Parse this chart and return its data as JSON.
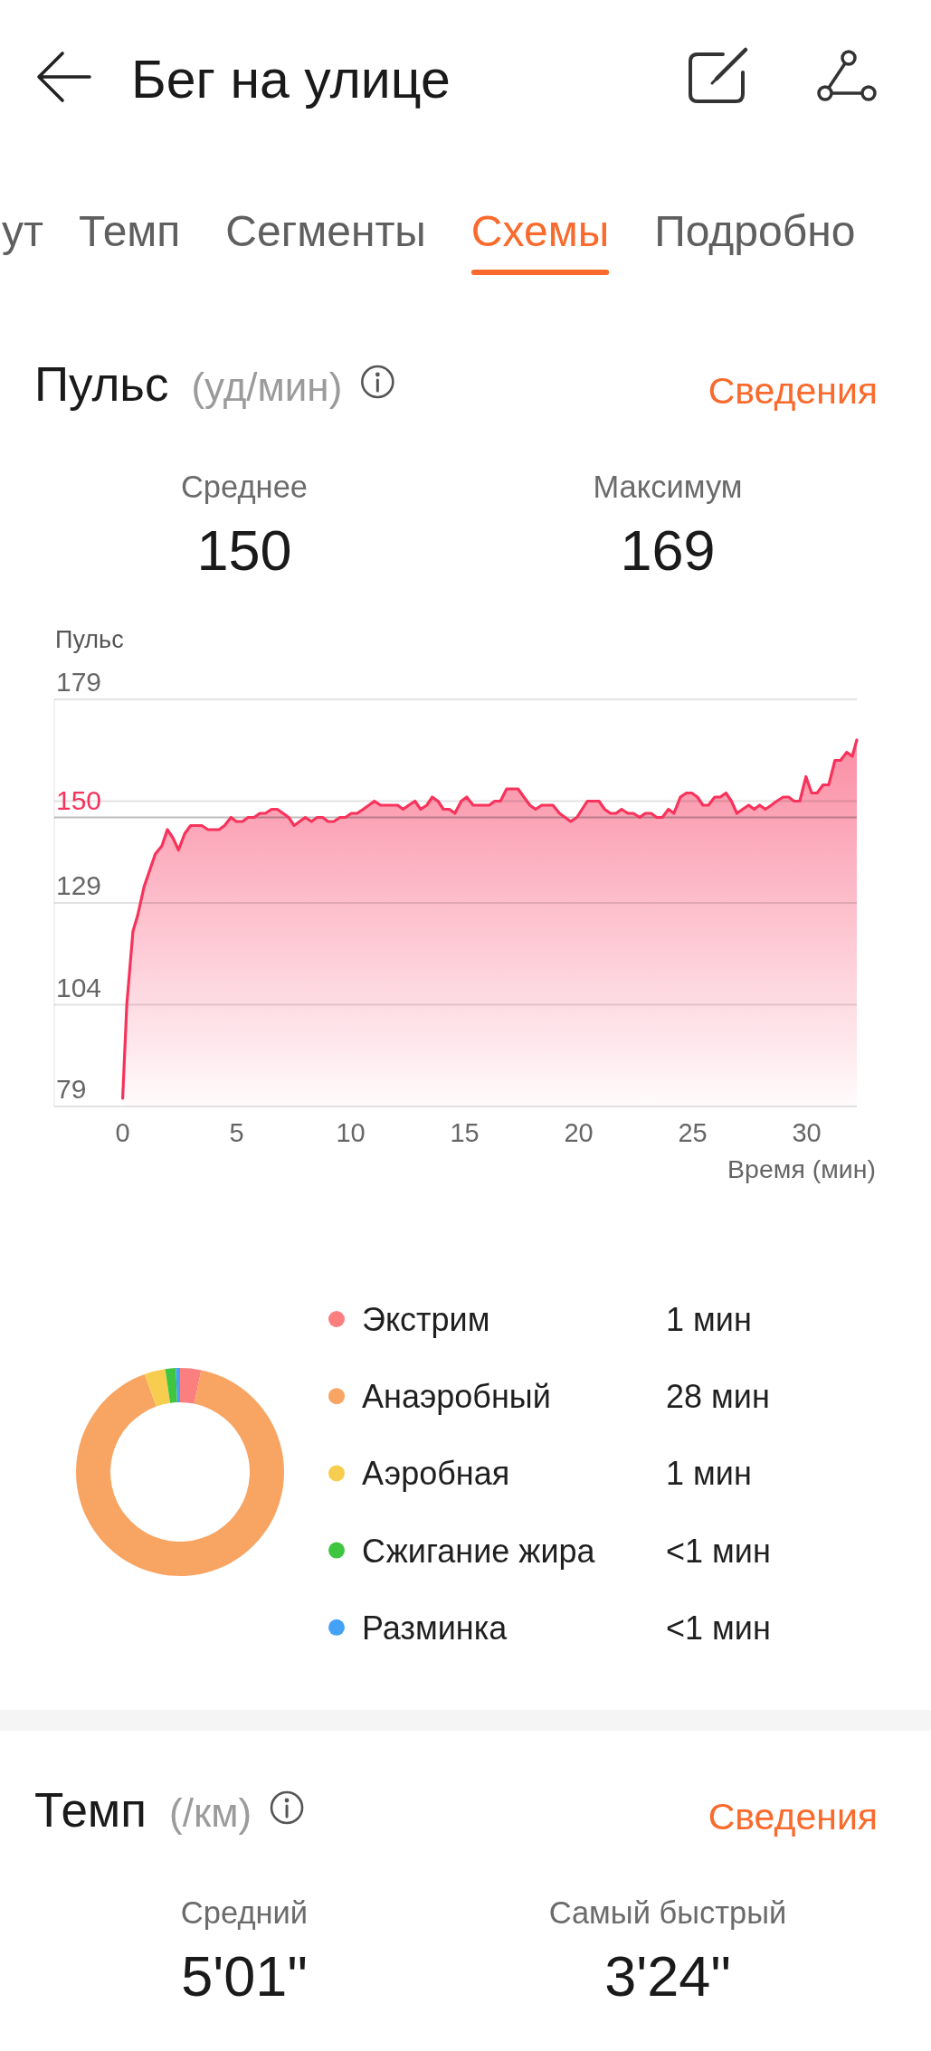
{
  "chart_data": [
    {
      "type": "other",
      "title": "Бег на улице",
      "annotations": [
        "ут",
        "Темп",
        "Сегменты",
        "Схемы",
        "Подробно"
      ]
    },
    {
      "type": "area",
      "title": "Пульс",
      "subtitle": "(уд/мин)",
      "annotations": [
        "Сведения",
        "Среднее",
        "150",
        "Максимум",
        "169"
      ],
      "ylabel": "Пульс",
      "xlabel": "Время (мин)",
      "x": [
        0,
        0.18,
        0.45,
        0.66,
        0.94,
        1.43,
        1.72,
        1.96,
        2.2,
        2.45,
        2.72,
        2.98,
        3.47,
        3.74,
        4.23,
        4.47,
        4.75,
        4.99,
        5.25,
        5.5,
        5.77,
        6.01,
        6.26,
        6.53,
        6.78,
        7.04,
        7.28,
        7.52,
        7.76,
        8.01,
        8.28,
        8.53,
        8.77,
        9.01,
        9.26,
        9.53,
        9.77,
        10.03,
        10.28,
        10.55,
        10.8,
        11.04,
        11.31,
        11.8,
        12.06,
        12.3,
        12.55,
        12.82,
        13.07,
        13.34,
        13.58,
        13.83,
        14.07,
        14.33,
        14.57,
        14.85,
        15.09,
        15.37,
        16.08,
        16.32,
        16.57,
        16.84,
        17.34,
        17.86,
        18.11,
        18.38,
        18.87,
        19.16,
        19.65,
        19.92,
        20.38,
        20.89,
        21.14,
        21.4,
        21.64,
        21.88,
        22.16,
        22.4,
        22.68,
        22.92,
        23.18,
        23.42,
        23.67,
        23.94,
        24.18,
        24.46,
        24.72,
        24.96,
        25.21,
        25.45,
        25.69,
        25.97,
        26.21,
        26.46,
        26.7,
        26.94,
        27.19,
        27.46,
        27.7,
        27.94,
        28.19,
        28.45,
        28.69,
        28.97,
        29.21,
        29.45,
        29.7,
        29.97,
        30.22,
        30.46,
        30.72,
        30.97,
        31.24,
        31.48,
        31.76,
        32,
        32.2
      ],
      "values": [
        81,
        104,
        122,
        126,
        133,
        141,
        143,
        147,
        145,
        142,
        146,
        148,
        148,
        147,
        147,
        148,
        150,
        149,
        149,
        150,
        150,
        151,
        151,
        152,
        152,
        151,
        150,
        148,
        149,
        150,
        149,
        150,
        150,
        149,
        149,
        150,
        150,
        151,
        151,
        152,
        153,
        154,
        153,
        153,
        153,
        152,
        153,
        154,
        152,
        153,
        155,
        154,
        152,
        152,
        151,
        154,
        155,
        153,
        153,
        154,
        154,
        157,
        157,
        153,
        152,
        153,
        153,
        151,
        149,
        150,
        154,
        154,
        152,
        151,
        151,
        152,
        151,
        151,
        150,
        151,
        151,
        150,
        150,
        152,
        151,
        155,
        156,
        156,
        155,
        153,
        153,
        155,
        155,
        156,
        154,
        151,
        152,
        153,
        152,
        153,
        152,
        153,
        154,
        155,
        155,
        154,
        154,
        160,
        156,
        156,
        158,
        158,
        164,
        164,
        166,
        165,
        169
      ],
      "color": "#f7335c",
      "xlim": [
        -3,
        32.2
      ],
      "ylim": [
        79,
        179
      ],
      "xticks": [
        0,
        5,
        10,
        15,
        20,
        25,
        30
      ],
      "yticks": [
        79,
        104,
        129,
        {
          "value": 154,
          "label": null
        },
        179
      ],
      "grid": "y",
      "ref_lines": [
        {
          "axis": "y",
          "value": 150,
          "label": "150",
          "color": "#bdbdbd"
        }
      ]
    },
    {
      "type": "donut",
      "categories": [
        "Экстрим",
        "Анаэробный",
        "Аэробная",
        "Сжигание жира",
        "Разминка"
      ],
      "values": [
        1,
        28,
        1,
        0.5,
        0.2
      ],
      "colors": [
        "#fb7f7f",
        "#f8a462",
        "#f6cd4f",
        "#40c540",
        "#43a2f5"
      ],
      "value_labels": [
        "1 мин",
        "28 мин",
        "1 мин",
        "<1 мин",
        "<1 мин"
      ],
      "legend": "right"
    },
    {
      "type": "other",
      "title": "Темп",
      "subtitle": "(/км)",
      "annotations": [
        "Сведения",
        "Средний",
        "5'01\"",
        "Самый быстрый",
        "3'24\""
      ]
    }
  ]
}
